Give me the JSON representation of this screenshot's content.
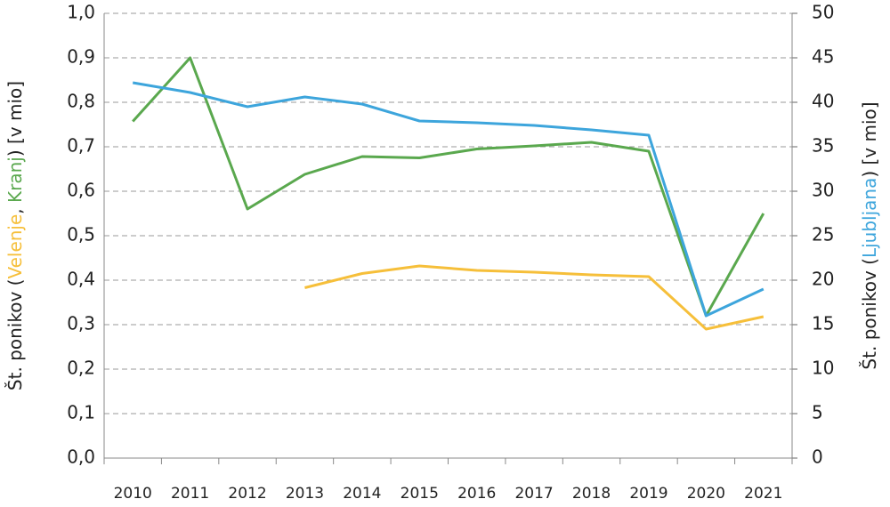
{
  "chart_data": {
    "type": "line",
    "categories": [
      "2010",
      "2011",
      "2012",
      "2013",
      "2014",
      "2015",
      "2016",
      "2017",
      "2018",
      "2019",
      "2020",
      "2021"
    ],
    "series": [
      {
        "name": "Velenje",
        "color": "#f6bf3a",
        "axis": "y",
        "values": [
          null,
          null,
          null,
          0.383,
          0.415,
          0.432,
          0.422,
          0.418,
          0.412,
          0.408,
          0.29,
          0.318
        ]
      },
      {
        "name": "Kranj",
        "color": "#5aa84e",
        "axis": "y",
        "values": [
          0.757,
          0.9,
          0.56,
          0.638,
          0.678,
          0.675,
          0.695,
          0.702,
          0.71,
          0.69,
          0.32,
          0.55
        ]
      },
      {
        "name": "Ljubljana",
        "color": "#3da5dc",
        "axis": "y2",
        "values": [
          42.2,
          41.1,
          39.5,
          40.6,
          39.8,
          37.9,
          37.7,
          37.4,
          36.9,
          36.3,
          16.0,
          19.0
        ]
      }
    ],
    "ylim": [
      0,
      1
    ],
    "yticks": [
      {
        "value": 0,
        "label": "0,0"
      },
      {
        "value": 0.1,
        "label": "0,1"
      },
      {
        "value": 0.2,
        "label": "0,2"
      },
      {
        "value": 0.3,
        "label": "0,3"
      },
      {
        "value": 0.4,
        "label": "0,4"
      },
      {
        "value": 0.5,
        "label": "0,5"
      },
      {
        "value": 0.6,
        "label": "0,6"
      },
      {
        "value": 0.7,
        "label": "0,7"
      },
      {
        "value": 0.8,
        "label": "0,8"
      },
      {
        "value": 0.9,
        "label": "0,9"
      },
      {
        "value": 1,
        "label": "1,0"
      }
    ],
    "y2lim": [
      0,
      50
    ],
    "y2ticks": [
      0,
      5,
      10,
      15,
      20,
      25,
      30,
      35,
      40,
      45,
      50
    ],
    "ylabel": {
      "before": "Št. ponikov (",
      "between": ", ",
      "after": ") [v mio]"
    },
    "y2label": {
      "before": "Št. ponikov (",
      "after": ") [v mio]"
    },
    "grid": true
  }
}
